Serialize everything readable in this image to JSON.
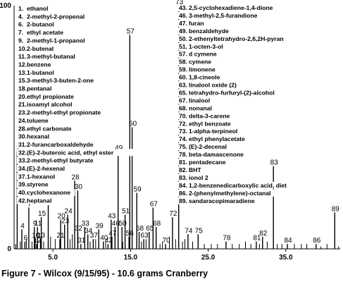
{
  "chart_data": {
    "type": "line",
    "title": "Figure 7 - Wilcox (9/15/95) - 10.6 grams Cranberry",
    "xlabel": "",
    "ylabel": "",
    "xlim": [
      0,
      42
    ],
    "ylim": [
      0,
      100
    ],
    "y_ticks": [
      "100",
      "0"
    ],
    "x_ticks": [
      {
        "value": 5.0,
        "label": "5.0"
      },
      {
        "value": 15.0,
        "label": "15.0"
      },
      {
        "value": 25.0,
        "label": "25.0"
      },
      {
        "value": 35.0,
        "label": "35.0"
      }
    ],
    "grid": false,
    "legend_left": [
      {
        "num": "1.",
        "name": "ethanol"
      },
      {
        "num": "4.",
        "name": "2-methyl-2-propenal"
      },
      {
        "num": "6.",
        "name": "2-butanol"
      },
      {
        "num": "7.",
        "name": "ethyl acetate"
      },
      {
        "num": "9.",
        "name": "2-methyl-1-propanol"
      },
      {
        "num": "10.",
        "name": "2-butenal"
      },
      {
        "num": "11.",
        "name": "3-methyl-butanal"
      },
      {
        "num": "12.",
        "name": "benzene"
      },
      {
        "num": "13.",
        "name": "1-butanol"
      },
      {
        "num": "15.",
        "name": "3-methyl-3-buten-2-one"
      },
      {
        "num": "18.",
        "name": "pentanal"
      },
      {
        "num": "20.",
        "name": "ethyl propionate"
      },
      {
        "num": "21.",
        "name": "isoamyl alcohol"
      },
      {
        "num": "23.",
        "name": "2-methyl-ethyl propionate"
      },
      {
        "num": "24.",
        "name": "toluene"
      },
      {
        "num": "28.",
        "name": "ethyl carbonate"
      },
      {
        "num": "30.",
        "name": "hexanal"
      },
      {
        "num": "31.",
        "name": "2-furancarboxaldehyde"
      },
      {
        "num": "32.",
        "name": "(E)-2-buteroic acid, ethyl ester"
      },
      {
        "num": "33.",
        "name": "2-methyl-ethyl butyrate"
      },
      {
        "num": "34.",
        "name": "(E)-2-hexenal"
      },
      {
        "num": "37.",
        "name": "1-hexanol"
      },
      {
        "num": "39.",
        "name": "styrene"
      },
      {
        "num": "40.",
        "name": "cyclohexanone"
      },
      {
        "num": "42.",
        "name": "heptanal"
      }
    ],
    "legend_right": [
      {
        "num": "43.",
        "name": "2,5-cyclohexadiene-1,4-dione"
      },
      {
        "num": "46.",
        "name": "3-methyl-2,5-furandione"
      },
      {
        "num": "47.",
        "name": "furan"
      },
      {
        "num": "49.",
        "name": "benzaldehyde"
      },
      {
        "num": "50.",
        "name": "2-ethenyltetrahydro-2,6,2H-pyran"
      },
      {
        "num": "51.",
        "name": "1-octen-3-ol"
      },
      {
        "num": "57.",
        "name": "d cymene"
      },
      {
        "num": "58.",
        "name": "cymene"
      },
      {
        "num": "59.",
        "name": "limonene"
      },
      {
        "num": "60.",
        "name": "1,8-cineole"
      },
      {
        "num": "63.",
        "name": "linalool oxide (2)"
      },
      {
        "num": "65.",
        "name": "tetrahydro-furfuryl-(2)-alcohol"
      },
      {
        "num": "67.",
        "name": "linalool"
      },
      {
        "num": "68.",
        "name": "nonanal"
      },
      {
        "num": "70.",
        "name": "delta-3-carene"
      },
      {
        "num": "72.",
        "name": "ethyl benzoate"
      },
      {
        "num": "73.",
        "name": "1-alpha-terpineol"
      },
      {
        "num": "74.",
        "name": "ethyl phenylacetate"
      },
      {
        "num": "75.",
        "name": "(E)-2-decenal"
      },
      {
        "num": "78.",
        "name": "beta-damascenone"
      },
      {
        "num": "81.",
        "name": "pentadecane"
      },
      {
        "num": "82.",
        "name": "BHT"
      },
      {
        "num": "83.",
        "name": "ionol 2"
      },
      {
        "num": "84.",
        "name": "1,2-benzenedicarboxylic acid, diet"
      },
      {
        "num": "86.",
        "name": "2-(phenylmethylene)-octanal"
      },
      {
        "num": "89.",
        "name": "sandaracopimaradiene"
      }
    ],
    "peaks": [
      {
        "label": "1",
        "x": 0.4,
        "y": 40
      },
      {
        "label": "4",
        "x": 1.0,
        "y": 8
      },
      {
        "label": "6",
        "x": 1.4,
        "y": 3
      },
      {
        "label": "7",
        "x": 1.9,
        "y": 17
      },
      {
        "label": "9",
        "x": 2.6,
        "y": 9
      },
      {
        "label": "10",
        "x": 2.7,
        "y": 4
      },
      {
        "label": "11",
        "x": 3.0,
        "y": 9
      },
      {
        "label": "12",
        "x": 2.9,
        "y": 2
      },
      {
        "label": "13",
        "x": 3.4,
        "y": 4
      },
      {
        "label": "15",
        "x": 3.5,
        "y": 13
      },
      {
        "label": "18",
        "x": 4.4,
        "y": 18
      },
      {
        "label": "20",
        "x": 6.0,
        "y": 12
      },
      {
        "label": "21",
        "x": 5.9,
        "y": 4
      },
      {
        "label": "23",
        "x": 6.5,
        "y": 10
      },
      {
        "label": "24",
        "x": 6.9,
        "y": 14
      },
      {
        "label": "28",
        "x": 7.8,
        "y": 28
      },
      {
        "label": "30",
        "x": 8.2,
        "y": 24
      },
      {
        "label": "31",
        "x": 8.6,
        "y": 2
      },
      {
        "label": "32",
        "x": 8.2,
        "y": 7
      },
      {
        "label": "33",
        "x": 9.1,
        "y": 9
      },
      {
        "label": "34",
        "x": 9.5,
        "y": 6
      },
      {
        "label": "37",
        "x": 10.2,
        "y": 4
      },
      {
        "label": "39",
        "x": 10.9,
        "y": 8
      },
      {
        "label": "40",
        "x": 11.5,
        "y": 3
      },
      {
        "label": "42",
        "x": 12.1,
        "y": 2
      },
      {
        "label": "43",
        "x": 12.5,
        "y": 12
      },
      {
        "label": "46",
        "x": 13.0,
        "y": 9
      },
      {
        "label": "47",
        "x": 12.6,
        "y": 5
      },
      {
        "label": "49",
        "x": 13.4,
        "y": 40
      },
      {
        "label": "50",
        "x": 13.9,
        "y": 9
      },
      {
        "label": "51",
        "x": 14.3,
        "y": 14
      },
      {
        "label": "56",
        "x": 14.8,
        "y": 5
      },
      {
        "label": "57",
        "x": 14.9,
        "y": 88
      },
      {
        "label": "58",
        "x": 16.1,
        "y": 7
      },
      {
        "label": "59",
        "x": 15.8,
        "y": 23
      },
      {
        "label": "60",
        "x": 15.2,
        "y": 50
      },
      {
        "label": "63",
        "x": 16.7,
        "y": 4
      },
      {
        "label": "65",
        "x": 17.4,
        "y": 7
      },
      {
        "label": "67",
        "x": 17.9,
        "y": 17
      },
      {
        "label": "68",
        "x": 18.3,
        "y": 9
      },
      {
        "label": "70",
        "x": 19.5,
        "y": 2
      },
      {
        "label": "72",
        "x": 20.4,
        "y": 13
      },
      {
        "label": "73",
        "x": 21.2,
        "y": 100
      },
      {
        "label": "74",
        "x": 22.4,
        "y": 6
      },
      {
        "label": "75",
        "x": 23.7,
        "y": 6
      },
      {
        "label": "78",
        "x": 27.3,
        "y": 3
      },
      {
        "label": "81",
        "x": 31.2,
        "y": 3
      },
      {
        "label": "82",
        "x": 32.0,
        "y": 5
      },
      {
        "label": "83",
        "x": 33.4,
        "y": 34
      },
      {
        "label": "84",
        "x": 35.2,
        "y": 2
      },
      {
        "label": "86",
        "x": 38.9,
        "y": 2
      },
      {
        "label": "89",
        "x": 41.3,
        "y": 15
      }
    ],
    "baseline_noise": [
      {
        "x": 0.2,
        "y": 2
      },
      {
        "x": 0.8,
        "y": 3
      },
      {
        "x": 1.6,
        "y": 4
      },
      {
        "x": 2.3,
        "y": 3
      },
      {
        "x": 3.8,
        "y": 3
      },
      {
        "x": 4.7,
        "y": 5
      },
      {
        "x": 5.3,
        "y": 4
      },
      {
        "x": 7.2,
        "y": 4
      },
      {
        "x": 7.5,
        "y": 6
      },
      {
        "x": 9.8,
        "y": 3
      },
      {
        "x": 10.5,
        "y": 4
      },
      {
        "x": 11.8,
        "y": 3
      },
      {
        "x": 14.0,
        "y": 3
      },
      {
        "x": 16.4,
        "y": 3
      },
      {
        "x": 17.0,
        "y": 4
      },
      {
        "x": 18.8,
        "y": 2
      },
      {
        "x": 19.1,
        "y": 3
      },
      {
        "x": 20.0,
        "y": 5
      },
      {
        "x": 20.8,
        "y": 4
      },
      {
        "x": 21.7,
        "y": 3
      },
      {
        "x": 22.0,
        "y": 4
      },
      {
        "x": 23.0,
        "y": 3
      },
      {
        "x": 24.5,
        "y": 2
      },
      {
        "x": 25.4,
        "y": 2
      },
      {
        "x": 26.2,
        "y": 2
      },
      {
        "x": 28.1,
        "y": 2
      },
      {
        "x": 29.0,
        "y": 2
      },
      {
        "x": 29.8,
        "y": 3
      },
      {
        "x": 30.5,
        "y": 2
      },
      {
        "x": 31.6,
        "y": 2
      },
      {
        "x": 32.6,
        "y": 3
      },
      {
        "x": 33.9,
        "y": 2
      },
      {
        "x": 34.5,
        "y": 2
      },
      {
        "x": 36.1,
        "y": 2
      },
      {
        "x": 37.0,
        "y": 2
      },
      {
        "x": 37.7,
        "y": 2
      },
      {
        "x": 39.5,
        "y": 1
      },
      {
        "x": 40.3,
        "y": 2
      },
      {
        "x": 41.8,
        "y": 1
      }
    ]
  }
}
